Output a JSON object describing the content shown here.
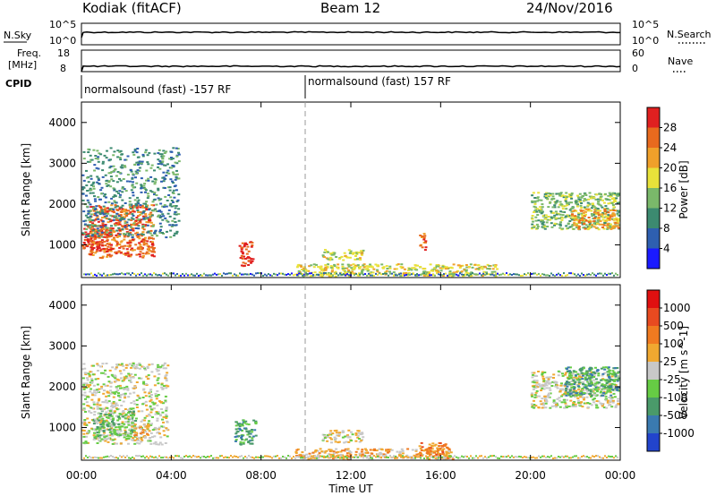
{
  "header": {
    "station": "Kodiak (fitACF)",
    "beam": "Beam 12",
    "date": "24/Nov/2016"
  },
  "aux_panels": {
    "nsky_label": "N.Sky",
    "nsky_ticks": [
      "10^5",
      "10^0"
    ],
    "nsearch_label": "N.Search",
    "nsearch_ticks": [
      "10^5",
      "10^0"
    ],
    "freq_label_line1": "Freq.",
    "freq_label_line2": "[MHz]",
    "freq_ticks": [
      "18",
      "8"
    ],
    "nave_label": "Nave",
    "nave_ticks": [
      "60",
      "0"
    ],
    "cpid_label": "CPID",
    "cpid_segments": [
      "normalsound (fast) -157 RF",
      "normalsound (fast) 157 RF"
    ]
  },
  "chart_data": [
    {
      "type": "heatmap",
      "name": "power",
      "ylabel": "Slant Range [km]",
      "xlabel": "",
      "yticks": [
        "1000",
        "2000",
        "3000",
        "4000"
      ],
      "ylim": [
        200,
        4500
      ],
      "xlim": [
        0,
        24
      ],
      "colorbar_label": "Power [dB]",
      "colorbar_ticks": [
        "4",
        "8",
        "12",
        "16",
        "20",
        "24",
        "28"
      ],
      "colors": [
        "#1a1aff",
        "#2e5fb0",
        "#3c8a70",
        "#7ab86a",
        "#e8e23a",
        "#f0a02a",
        "#e86a1e",
        "#e02020"
      ],
      "regions": [
        {
          "t0": 0.0,
          "t1": 1.3,
          "r0": 900,
          "r1": 1500,
          "level": 7
        },
        {
          "t0": 0.3,
          "t1": 3.2,
          "r0": 700,
          "r1": 2000,
          "level": 6
        },
        {
          "t0": 0.0,
          "t1": 4.3,
          "r0": 1200,
          "r1": 3400,
          "level": 2
        },
        {
          "t0": 7.0,
          "t1": 7.6,
          "r0": 500,
          "r1": 1100,
          "level": 7
        },
        {
          "t0": 10.7,
          "t1": 12.5,
          "r0": 650,
          "r1": 900,
          "level": 4
        },
        {
          "t0": 15.0,
          "t1": 15.3,
          "r0": 900,
          "r1": 1300,
          "level": 6
        },
        {
          "t0": 20.0,
          "t1": 23.9,
          "r0": 1400,
          "r1": 2300,
          "level": 3
        },
        {
          "t0": 21.8,
          "t1": 23.9,
          "r0": 1400,
          "r1": 1900,
          "level": 5
        },
        {
          "t0": 9.5,
          "t1": 18.5,
          "r0": 250,
          "r1": 550,
          "level": 4
        }
      ]
    },
    {
      "type": "heatmap",
      "name": "velocity",
      "ylabel": "Slant Range [km]",
      "xlabel": "Time UT",
      "yticks": [
        "1000",
        "2000",
        "3000",
        "4000"
      ],
      "xticks": [
        "00:00",
        "04:00",
        "08:00",
        "12:00",
        "16:00",
        "20:00",
        "00:00"
      ],
      "ylim": [
        200,
        4500
      ],
      "xlim": [
        0,
        24
      ],
      "colorbar_label": "Velocity [m s^-1]",
      "colorbar_ticks": [
        "1000",
        "500",
        "100",
        "25",
        "-25",
        "-100",
        "-500",
        "-1000"
      ],
      "colors": [
        "#2244cc",
        "#3a7ab0",
        "#4a9a6a",
        "#66cc44",
        "#c8c8c8",
        "#f0a830",
        "#f07a20",
        "#e84a20",
        "#e01010"
      ],
      "regions": [
        {
          "t0": 0.0,
          "t1": 3.8,
          "r0": 600,
          "r1": 2600,
          "level": 4
        },
        {
          "t0": 0.5,
          "t1": 2.4,
          "r0": 700,
          "r1": 1500,
          "level": 3
        },
        {
          "t0": 2.2,
          "t1": 3.0,
          "r0": 700,
          "r1": 1100,
          "level": 5
        },
        {
          "t0": 6.8,
          "t1": 7.8,
          "r0": 600,
          "r1": 1200,
          "level": 2
        },
        {
          "t0": 10.7,
          "t1": 12.5,
          "r0": 650,
          "r1": 950,
          "level": 4
        },
        {
          "t0": 9.5,
          "t1": 16.5,
          "r0": 250,
          "r1": 500,
          "level": 5
        },
        {
          "t0": 15.0,
          "t1": 16.4,
          "r0": 250,
          "r1": 650,
          "level": 6
        },
        {
          "t0": 20.0,
          "t1": 23.9,
          "r0": 1500,
          "r1": 2400,
          "level": 4
        },
        {
          "t0": 21.5,
          "t1": 23.9,
          "r0": 1800,
          "r1": 2500,
          "level": 2
        }
      ]
    }
  ]
}
